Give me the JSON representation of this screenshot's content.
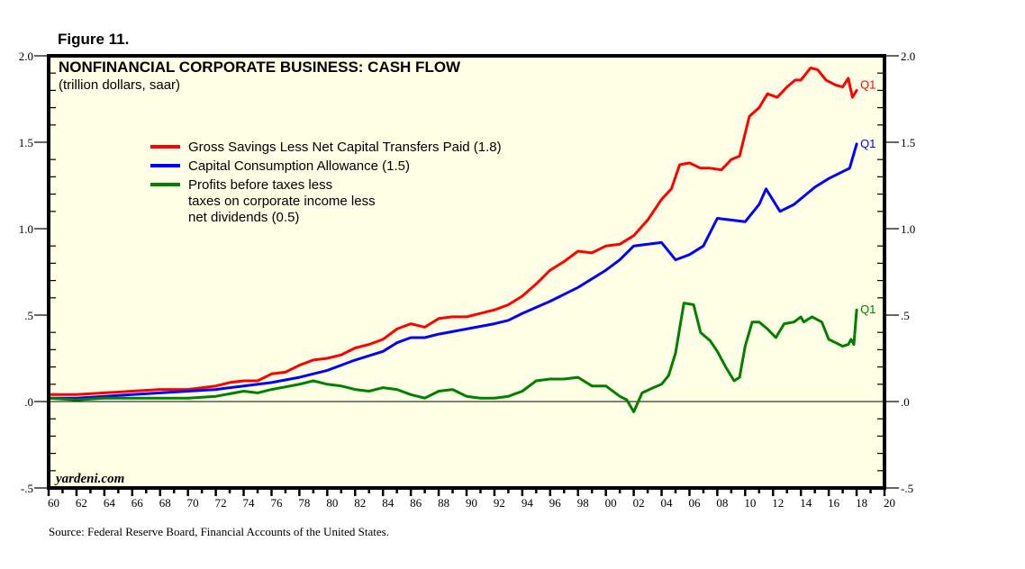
{
  "figure_label": "Figure 11.",
  "source": "Source: Federal Reserve Board, Financial Accounts of the United States.",
  "watermark": "yardeni.com",
  "chart_data": {
    "type": "line",
    "title": "NONFINANCIAL CORPORATE BUSINESS: CASH FLOW",
    "subtitle": "(trillion dollars, saar)",
    "xlabel": "",
    "ylabel": "",
    "xlim": [
      1960,
      2020
    ],
    "ylim": [
      -0.5,
      2.0
    ],
    "x_ticks": [
      "60",
      "62",
      "64",
      "66",
      "68",
      "70",
      "72",
      "74",
      "76",
      "78",
      "80",
      "82",
      "84",
      "86",
      "88",
      "90",
      "92",
      "94",
      "96",
      "98",
      "00",
      "02",
      "04",
      "06",
      "08",
      "10",
      "12",
      "14",
      "16",
      "18",
      "20"
    ],
    "y_ticks": [
      {
        "value": 2.0,
        "label": "2.0"
      },
      {
        "value": 1.5,
        "label": "1.5"
      },
      {
        "value": 1.0,
        "label": "1.0"
      },
      {
        "value": 0.5,
        "label": ".5"
      },
      {
        "value": 0.0,
        "label": ".0"
      },
      {
        "value": -0.5,
        "label": "-.5"
      }
    ],
    "zero_line": true,
    "grid": false,
    "legend_position": "top-left",
    "end_label": "Q1",
    "series": [
      {
        "name": "Gross Savings Less Net Capital Transfers Paid (1.8)",
        "color": "#ff0000",
        "points": [
          [
            1960,
            0.04
          ],
          [
            1962,
            0.04
          ],
          [
            1964,
            0.05
          ],
          [
            1966,
            0.06
          ],
          [
            1968,
            0.07
          ],
          [
            1970,
            0.07
          ],
          [
            1972,
            0.09
          ],
          [
            1973,
            0.11
          ],
          [
            1974,
            0.12
          ],
          [
            1975,
            0.12
          ],
          [
            1976,
            0.16
          ],
          [
            1977,
            0.17
          ],
          [
            1978,
            0.21
          ],
          [
            1979,
            0.24
          ],
          [
            1980,
            0.25
          ],
          [
            1981,
            0.27
          ],
          [
            1982,
            0.31
          ],
          [
            1983,
            0.33
          ],
          [
            1984,
            0.36
          ],
          [
            1985,
            0.42
          ],
          [
            1986,
            0.45
          ],
          [
            1987,
            0.43
          ],
          [
            1988,
            0.48
          ],
          [
            1989,
            0.49
          ],
          [
            1990,
            0.49
          ],
          [
            1991,
            0.51
          ],
          [
            1992,
            0.53
          ],
          [
            1993,
            0.56
          ],
          [
            1994,
            0.61
          ],
          [
            1995,
            0.68
          ],
          [
            1996,
            0.76
          ],
          [
            1997,
            0.81
          ],
          [
            1998,
            0.87
          ],
          [
            1999,
            0.86
          ],
          [
            2000,
            0.9
          ],
          [
            2001,
            0.91
          ],
          [
            2002,
            0.96
          ],
          [
            2003,
            1.05
          ],
          [
            2004,
            1.17
          ],
          [
            2004.7,
            1.23
          ],
          [
            2005.3,
            1.37
          ],
          [
            2006,
            1.38
          ],
          [
            2006.8,
            1.35
          ],
          [
            2007.5,
            1.35
          ],
          [
            2008.3,
            1.34
          ],
          [
            2009,
            1.4
          ],
          [
            2009.6,
            1.42
          ],
          [
            2010.3,
            1.65
          ],
          [
            2011,
            1.7
          ],
          [
            2011.6,
            1.78
          ],
          [
            2012.3,
            1.76
          ],
          [
            2013,
            1.82
          ],
          [
            2013.6,
            1.86
          ],
          [
            2014,
            1.86
          ],
          [
            2014.7,
            1.93
          ],
          [
            2015.2,
            1.92
          ],
          [
            2015.8,
            1.86
          ],
          [
            2016.5,
            1.83
          ],
          [
            2017,
            1.82
          ],
          [
            2017.4,
            1.87
          ],
          [
            2017.7,
            1.76
          ],
          [
            2018,
            1.8
          ]
        ]
      },
      {
        "name": "Capital Consumption Allowance (1.5)",
        "color": "#0000ff",
        "points": [
          [
            1960,
            0.02
          ],
          [
            1962,
            0.02
          ],
          [
            1964,
            0.03
          ],
          [
            1966,
            0.04
          ],
          [
            1968,
            0.05
          ],
          [
            1970,
            0.06
          ],
          [
            1972,
            0.07
          ],
          [
            1974,
            0.09
          ],
          [
            1976,
            0.11
          ],
          [
            1978,
            0.14
          ],
          [
            1980,
            0.18
          ],
          [
            1982,
            0.24
          ],
          [
            1984,
            0.29
          ],
          [
            1985,
            0.34
          ],
          [
            1986,
            0.37
          ],
          [
            1987,
            0.37
          ],
          [
            1988,
            0.39
          ],
          [
            1990,
            0.42
          ],
          [
            1992,
            0.45
          ],
          [
            1993,
            0.47
          ],
          [
            1994,
            0.51
          ],
          [
            1996,
            0.58
          ],
          [
            1998,
            0.66
          ],
          [
            2000,
            0.76
          ],
          [
            2001,
            0.82
          ],
          [
            2002,
            0.9
          ],
          [
            2003,
            0.91
          ],
          [
            2004,
            0.92
          ],
          [
            2005,
            0.82
          ],
          [
            2006,
            0.85
          ],
          [
            2007,
            0.9
          ],
          [
            2008,
            1.06
          ],
          [
            2009,
            1.05
          ],
          [
            2010,
            1.04
          ],
          [
            2011,
            1.14
          ],
          [
            2011.5,
            1.23
          ],
          [
            2012.5,
            1.1
          ],
          [
            2013.5,
            1.14
          ],
          [
            2015,
            1.24
          ],
          [
            2016,
            1.29
          ],
          [
            2017.5,
            1.35
          ],
          [
            2018,
            1.49
          ]
        ]
      },
      {
        "name": "Profits before taxes less taxes on corporate income less net dividends (0.5)",
        "color": "#008000",
        "points": [
          [
            1960,
            0.02
          ],
          [
            1962,
            0.01
          ],
          [
            1964,
            0.02
          ],
          [
            1966,
            0.02
          ],
          [
            1968,
            0.02
          ],
          [
            1970,
            0.02
          ],
          [
            1972,
            0.03
          ],
          [
            1974,
            0.06
          ],
          [
            1975,
            0.05
          ],
          [
            1976,
            0.07
          ],
          [
            1978,
            0.1
          ],
          [
            1979,
            0.12
          ],
          [
            1980,
            0.1
          ],
          [
            1981,
            0.09
          ],
          [
            1982,
            0.07
          ],
          [
            1983,
            0.06
          ],
          [
            1984,
            0.08
          ],
          [
            1985,
            0.07
          ],
          [
            1986,
            0.04
          ],
          [
            1987,
            0.02
          ],
          [
            1988,
            0.06
          ],
          [
            1989,
            0.07
          ],
          [
            1990,
            0.03
          ],
          [
            1991,
            0.02
          ],
          [
            1992,
            0.02
          ],
          [
            1993,
            0.03
          ],
          [
            1994,
            0.06
          ],
          [
            1995,
            0.12
          ],
          [
            1996,
            0.13
          ],
          [
            1997,
            0.13
          ],
          [
            1998,
            0.14
          ],
          [
            1999,
            0.09
          ],
          [
            2000,
            0.09
          ],
          [
            2001,
            0.03
          ],
          [
            2001.5,
            0.01
          ],
          [
            2002,
            -0.06
          ],
          [
            2002.6,
            0.05
          ],
          [
            2003.4,
            0.08
          ],
          [
            2004,
            0.1
          ],
          [
            2004.5,
            0.15
          ],
          [
            2005,
            0.28
          ],
          [
            2005.6,
            0.57
          ],
          [
            2006.3,
            0.56
          ],
          [
            2006.8,
            0.4
          ],
          [
            2007.5,
            0.35
          ],
          [
            2008,
            0.29
          ],
          [
            2008.6,
            0.2
          ],
          [
            2009.2,
            0.12
          ],
          [
            2009.6,
            0.14
          ],
          [
            2010,
            0.32
          ],
          [
            2010.5,
            0.46
          ],
          [
            2011,
            0.46
          ],
          [
            2011.6,
            0.42
          ],
          [
            2012.2,
            0.37
          ],
          [
            2012.8,
            0.45
          ],
          [
            2013.5,
            0.46
          ],
          [
            2014,
            0.49
          ],
          [
            2014.2,
            0.46
          ],
          [
            2014.8,
            0.49
          ],
          [
            2015.5,
            0.46
          ],
          [
            2016,
            0.36
          ],
          [
            2016.5,
            0.34
          ],
          [
            2017,
            0.32
          ],
          [
            2017.4,
            0.33
          ],
          [
            2017.6,
            0.36
          ],
          [
            2017.8,
            0.33
          ],
          [
            2018,
            0.53
          ]
        ]
      }
    ]
  }
}
